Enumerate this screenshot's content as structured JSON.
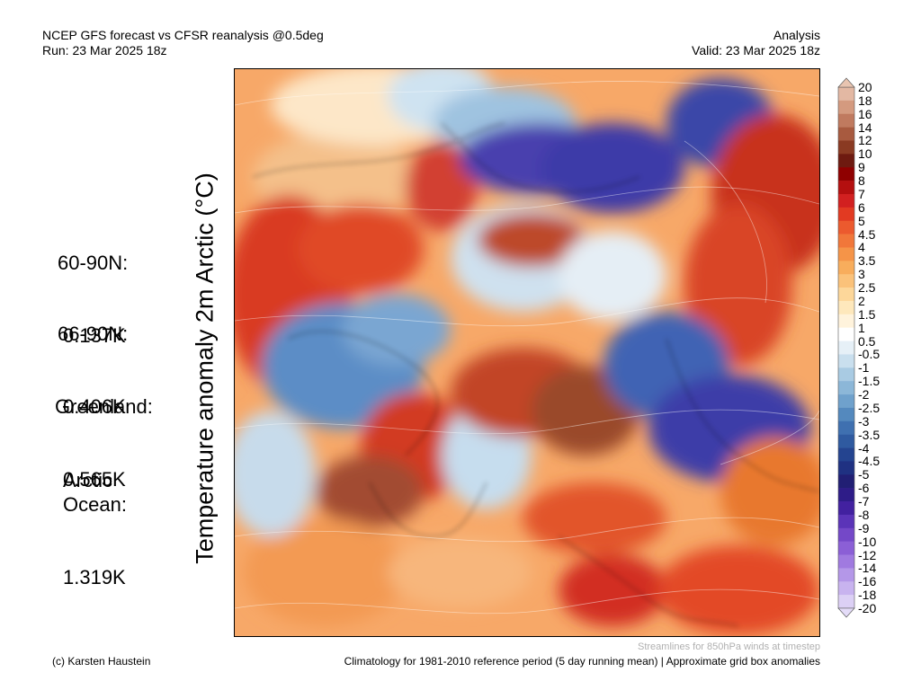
{
  "header": {
    "left_line1": "NCEP GFS forecast vs CFSR reanalysis @0.5deg",
    "left_line2": "Run: 23 Mar 2025 18z",
    "right_line1": "Analysis",
    "right_line2": "Valid: 23 Mar 2025 18z"
  },
  "vertical_title": "Temperature anomaly 2m Arctic (°C)",
  "stats": [
    {
      "label": "60-90N:",
      "value": "0.137K"
    },
    {
      "label": "66-90N:",
      "value": "0.406K"
    },
    {
      "label": "Greenland:",
      "value": "0.565K"
    },
    {
      "label": "Arctic\nOcean:",
      "value": "1.319K"
    }
  ],
  "colorbar": {
    "labels": [
      "20",
      "18",
      "16",
      "14",
      "12",
      "10",
      "9",
      "8",
      "7",
      "6",
      "5",
      "4.5",
      "4",
      "3.5",
      "3",
      "2.5",
      "2",
      "1.5",
      "1",
      "0.5",
      "-0.5",
      "-1",
      "-1.5",
      "-2",
      "-2.5",
      "-3",
      "-3.5",
      "-4",
      "-4.5",
      "-5",
      "-6",
      "-7",
      "-8",
      "-9",
      "-10",
      "-12",
      "-14",
      "-16",
      "-18",
      "-20"
    ],
    "colors": [
      "#e3b8a3",
      "#d49a7f",
      "#c07a5f",
      "#a85a3f",
      "#8a3a22",
      "#6e1a10",
      "#8f0000",
      "#b40f0f",
      "#d22020",
      "#e23a22",
      "#ec5a2e",
      "#f1773a",
      "#f59448",
      "#f8ad5c",
      "#fbc27a",
      "#fdd79a",
      "#fee8bc",
      "#fff3dc",
      "#ffffff",
      "#e6f0f7",
      "#c9dfee",
      "#a9cbe3",
      "#8cb7d8",
      "#6fa1cc",
      "#5489be",
      "#3f70b0",
      "#2f5aa0",
      "#244490",
      "#1f3182",
      "#211f74",
      "#2e1c88",
      "#4221a0",
      "#5b34b8",
      "#7448c8",
      "#8b5fd6",
      "#a07ae0",
      "#b497e8",
      "#c8b3ef",
      "#dcd0f5"
    ]
  },
  "footer": {
    "note": "Streamlines for 850hPa winds at timestep",
    "left": "(c) Karsten Haustein",
    "right": "Climatology for 1981-2010 reference period (5 day running mean) | Approximate grid box anomalies"
  }
}
